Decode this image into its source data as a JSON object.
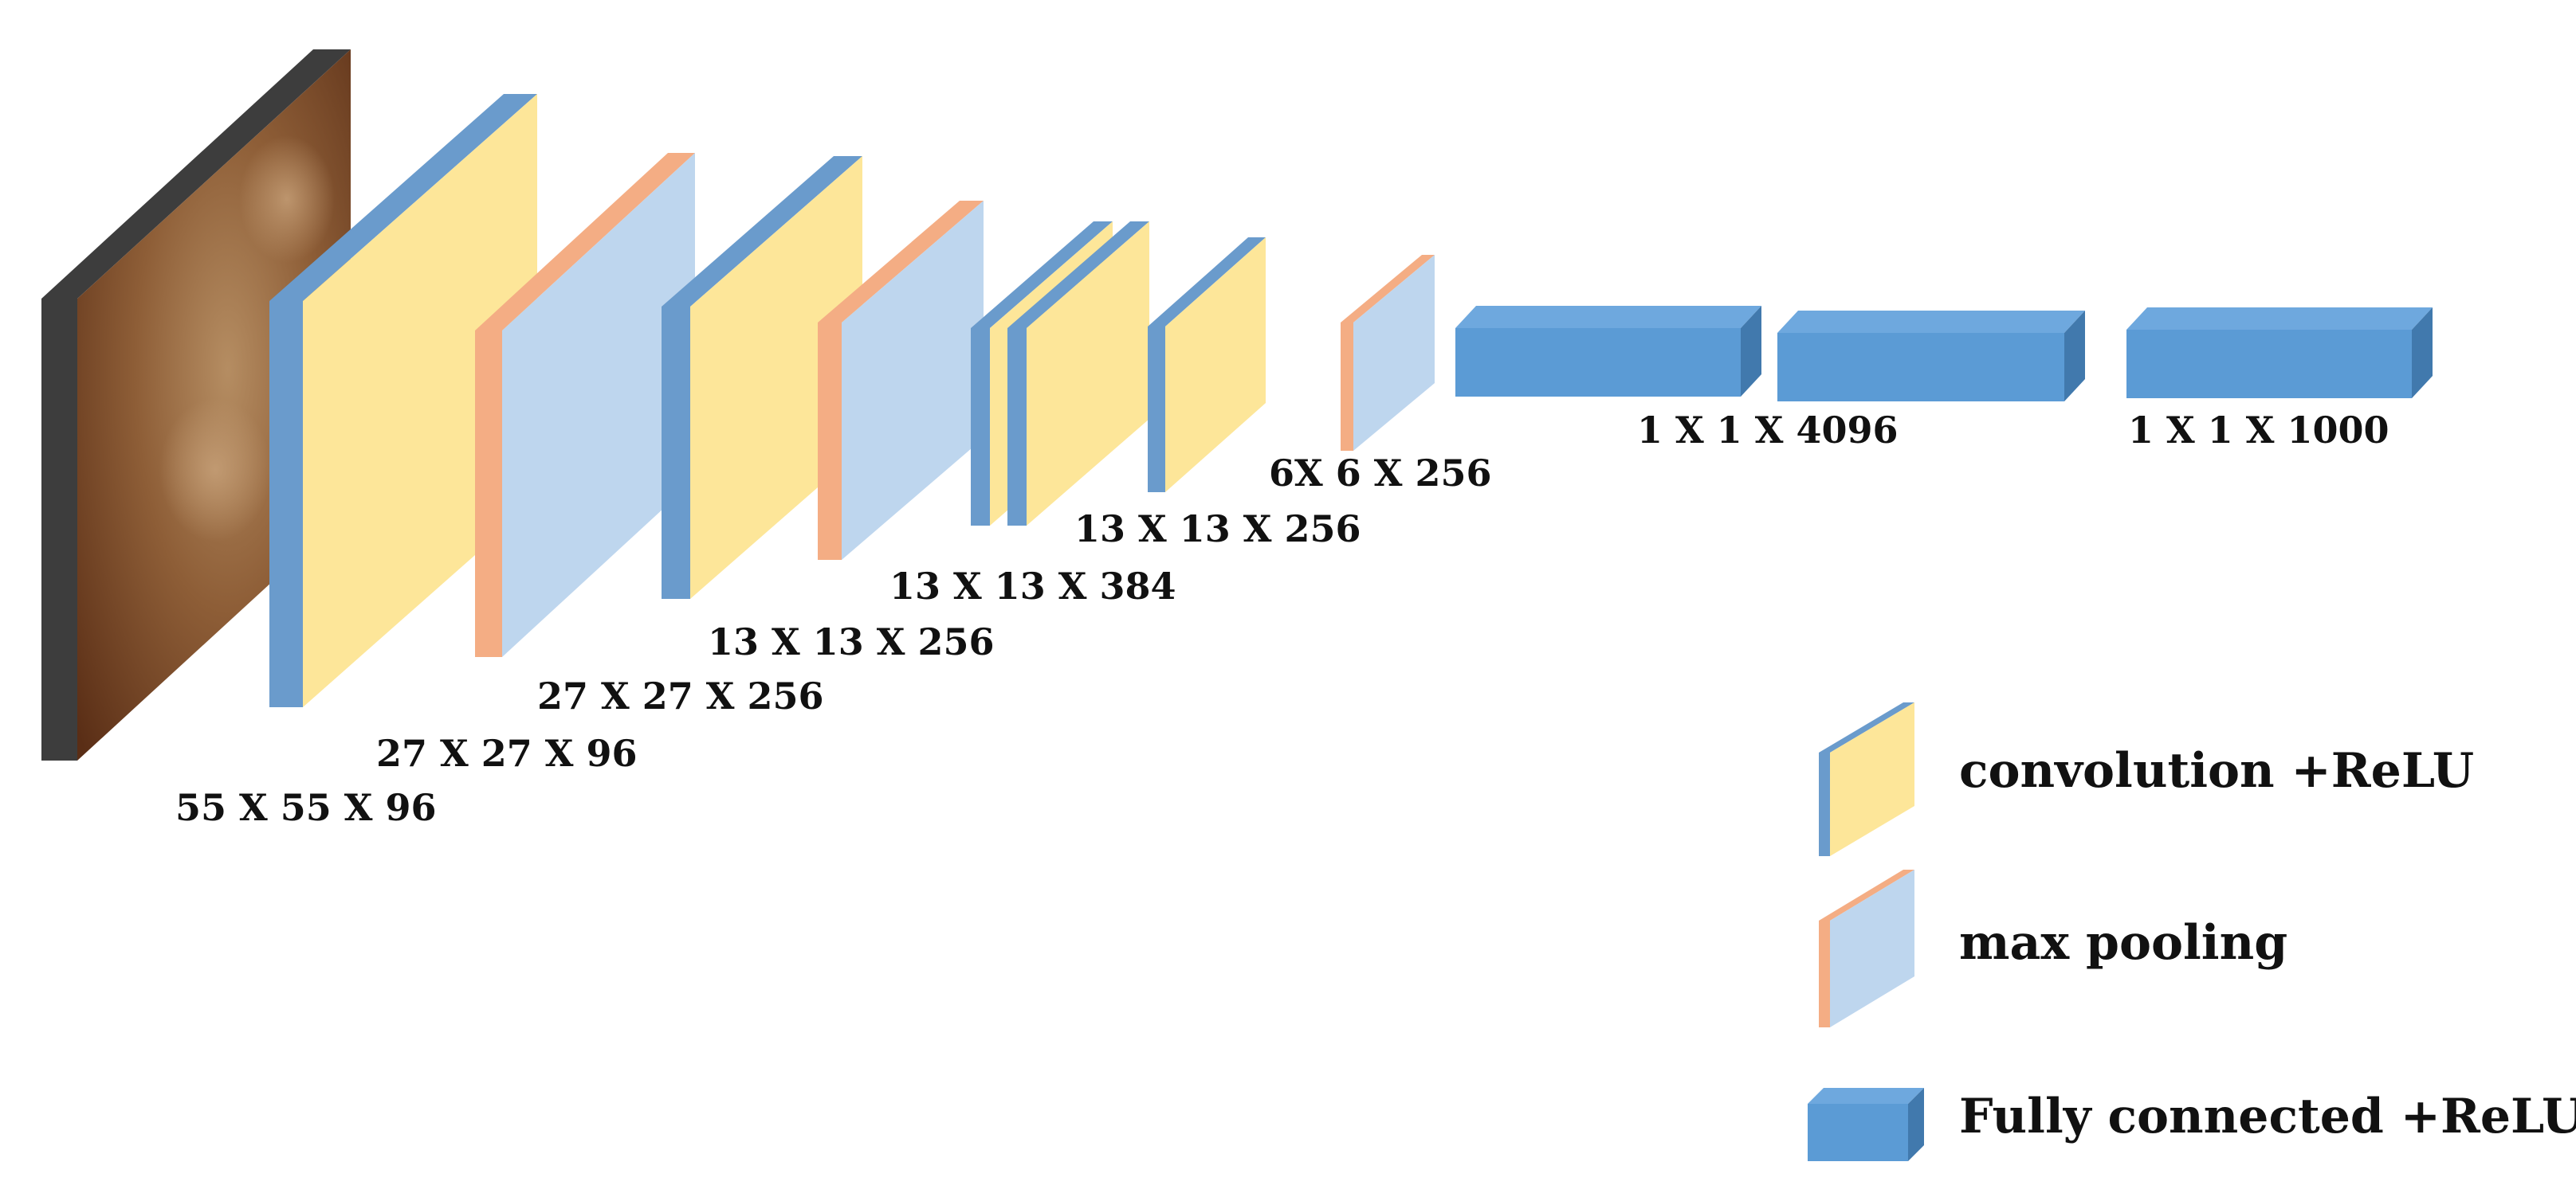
{
  "diagram": {
    "layer_labels": {
      "input": "55 X 55 X 96",
      "conv1": "27 X 27 X 96",
      "pool1": "27 X 27 X 256",
      "conv2": "13 X 13 X 256",
      "conv3": "13 X 13 X 384",
      "conv4": "13 X 13 X 256",
      "pool3": "6X 6 X 256",
      "fc1": "1 X 1 X 4096",
      "fc3": "1 X 1 X 1000"
    },
    "legend": {
      "conv": "convolution +ReLU",
      "pool": "max pooling",
      "fc": "Fully connected +ReLU"
    }
  },
  "colors": {
    "input_face": "#7a4a2a",
    "input_side": "#3d3d3d",
    "conv_face": "#fde699",
    "conv_edge": "#6a9bcc",
    "pool_face": "#bed6ee",
    "pool_edge": "#f4ad84",
    "fc_front": "#5b9bd5",
    "fc_top": "#6ea8de",
    "fc_side": "#4179ad"
  }
}
